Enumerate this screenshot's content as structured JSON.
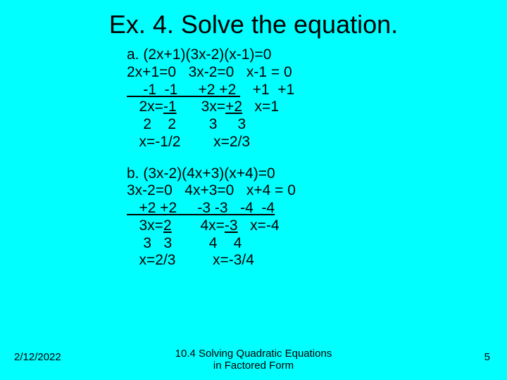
{
  "colors": {
    "background": "#00ffff",
    "text": "#000000"
  },
  "title": "Ex. 4. Solve the equation.",
  "blockA": {
    "l1": "a. (2x+1)(3x-2)(x-1)=0",
    "l2": "2x+1=0   3x-2=0   x-1 = 0",
    "l3a": "    -1  -1",
    "l3b": "     +2 +2 ",
    "l3c": "   +1  +1",
    "l4a": "   2x=",
    "l4b": "-1",
    "l4c": "      3x=",
    "l4d": "+2",
    "l4e": "   x=1",
    "l5": "    2    2        3     3",
    "l6": "   x=-1/2        x=2/3"
  },
  "blockB": {
    "l1": "b. (3x-2)(4x+3)(x+4)=0",
    "l2": "3x-2=0   4x+3=0   x+4 = 0",
    "l3a": "   +2 +2",
    "l3b": "     -3 -3",
    "l3c": "   -4  -4",
    "l4a": "   3x=",
    "l4b": "2",
    "l4c": "       4x=",
    "l4d": "-3",
    "l4e": "   x=-4",
    "l5": "    3   3         4    4",
    "l6": "   x=2/3         x=-3/4"
  },
  "footer": {
    "date": "2/12/2022",
    "caption": "10.4 Solving Quadratic Equations\nin Factored Form",
    "page": "5"
  }
}
